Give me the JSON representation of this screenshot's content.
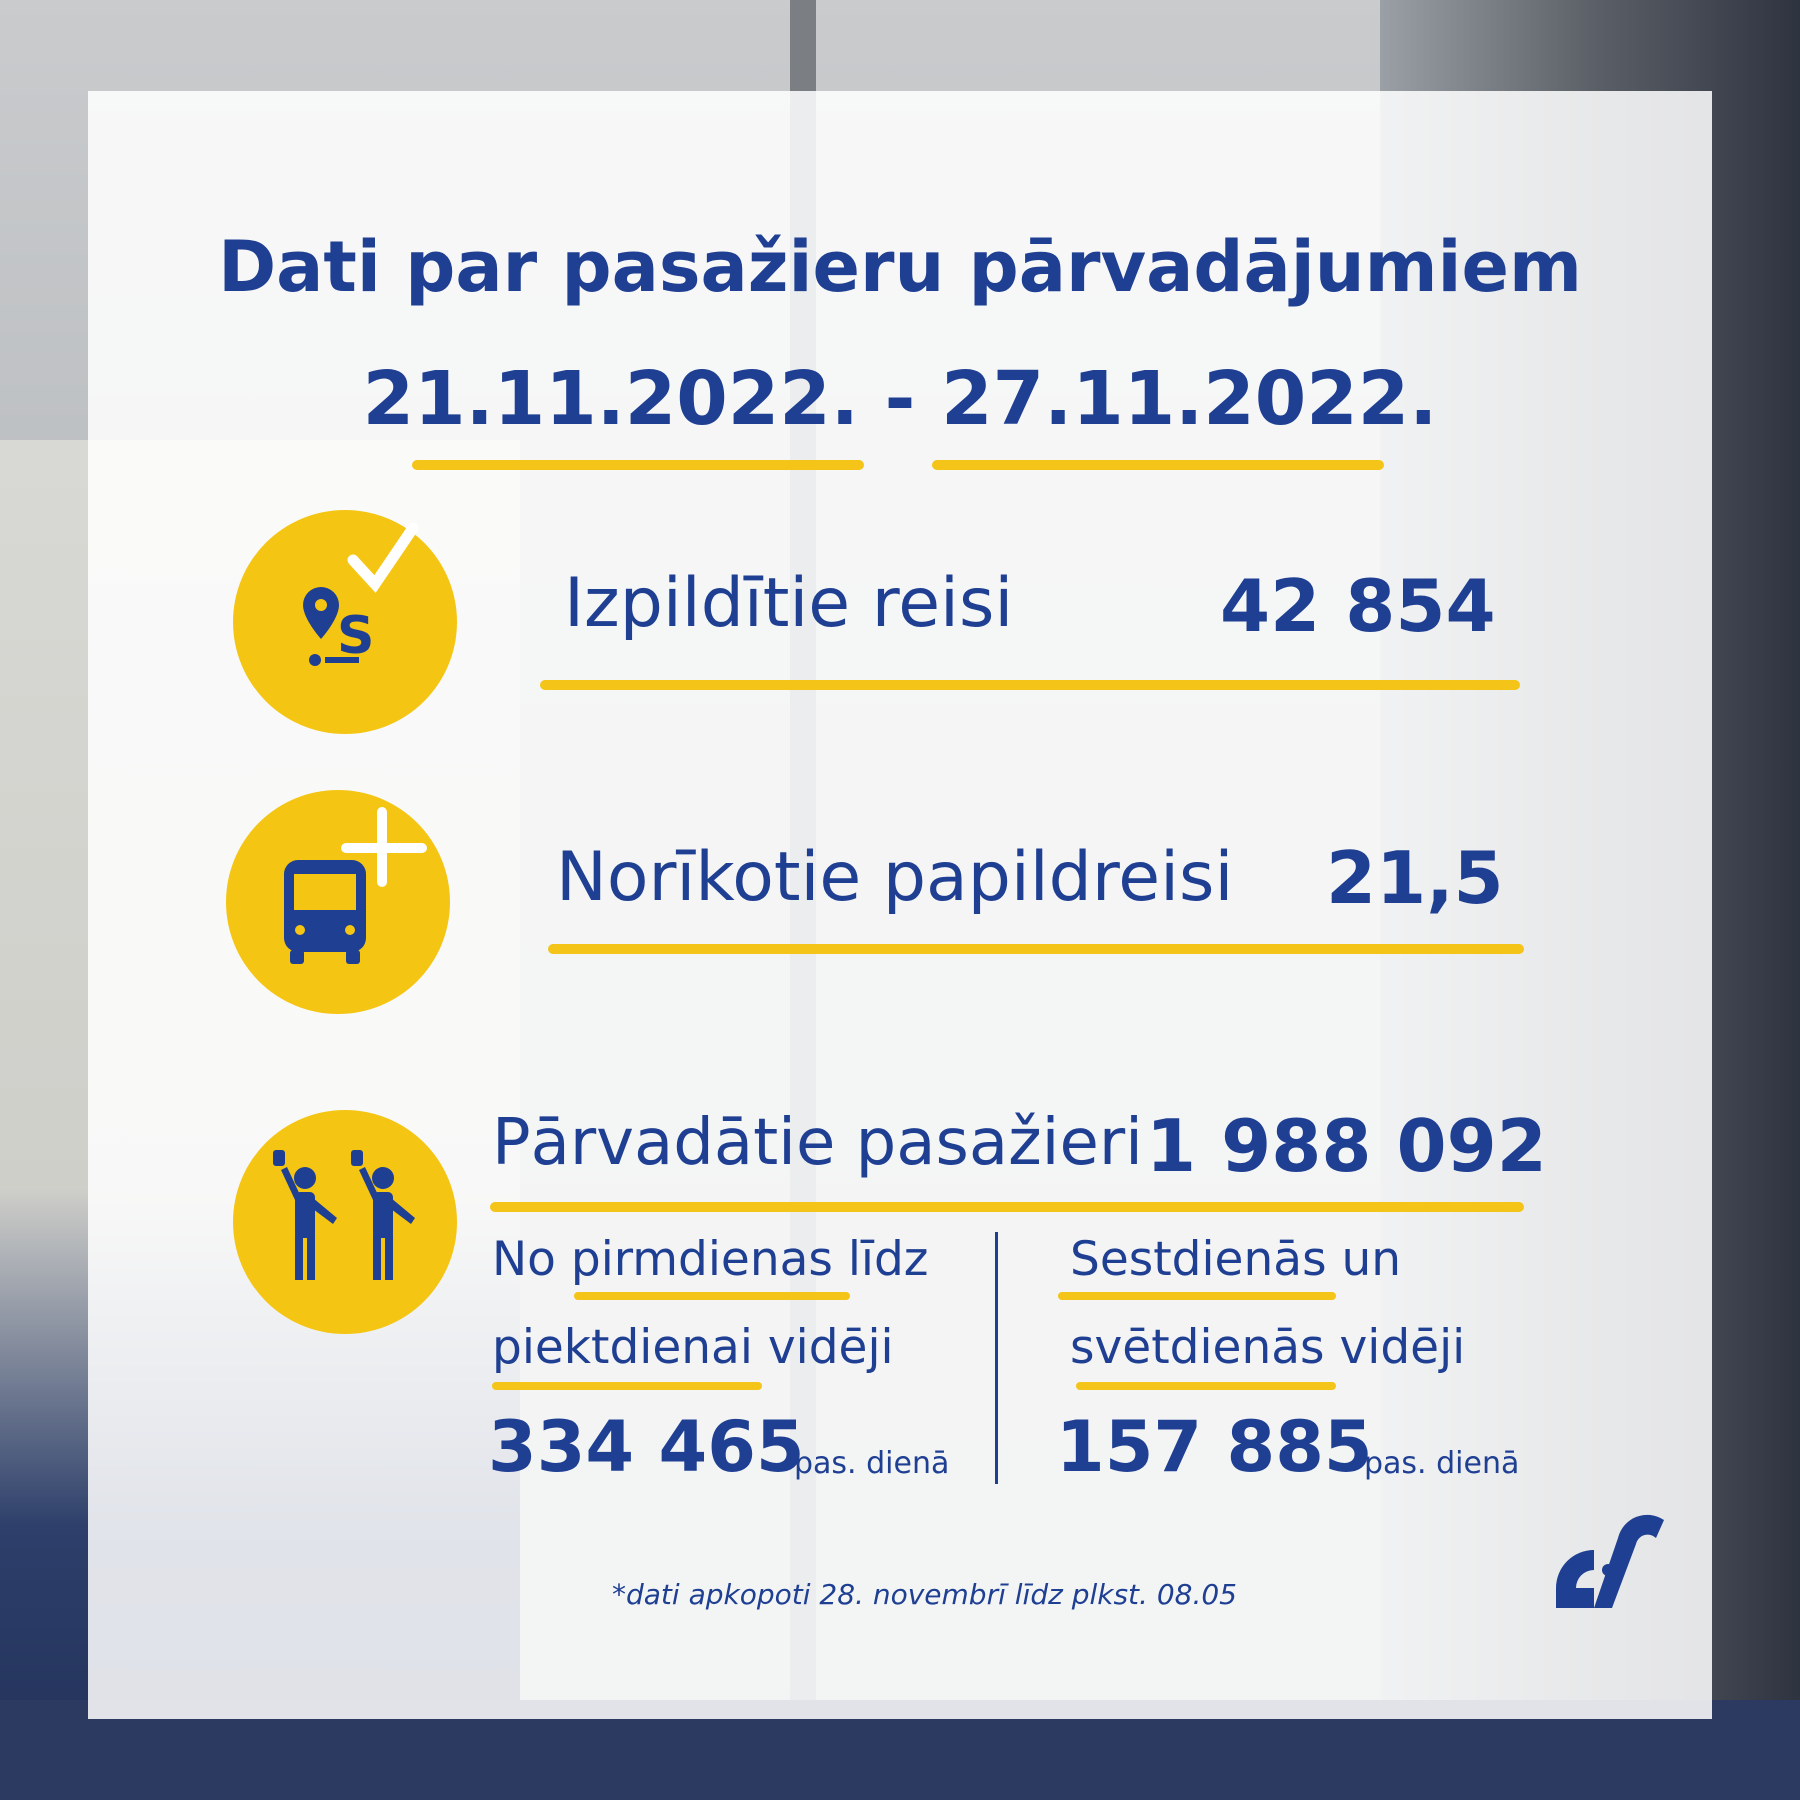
{
  "header": {
    "title": "Dati par pasažieru pārvadājumiem",
    "period": "21.11.2022. - 27.11.2022."
  },
  "metrics": {
    "trips": {
      "label": "Izpildītie reisi",
      "value": "42 854",
      "icon": "route-check-icon"
    },
    "extra_trips": {
      "label": "Norīkotie papildreisi",
      "value": "21,5",
      "icon": "bus-plus-icon"
    },
    "passengers": {
      "label": "Pārvadātie pasažieri",
      "value": "1 988 092",
      "icon": "passengers-icon"
    }
  },
  "weekday": {
    "line1": "No pirmdienas līdz",
    "line2": "piektdienai vidēji",
    "value": "334 465",
    "unit": "pas. dienā"
  },
  "weekend": {
    "line1": "Sestdienās un",
    "line2": "svētdienās vidēji",
    "value": "157 885",
    "unit": "pas. dienā"
  },
  "footnote": "*dati apkopoti 28. novembrī līdz plkst. 08.05",
  "brand": {
    "logo": "rigas-satiksme-logo",
    "accent": "#f5c514",
    "primary": "#1f3f93"
  }
}
